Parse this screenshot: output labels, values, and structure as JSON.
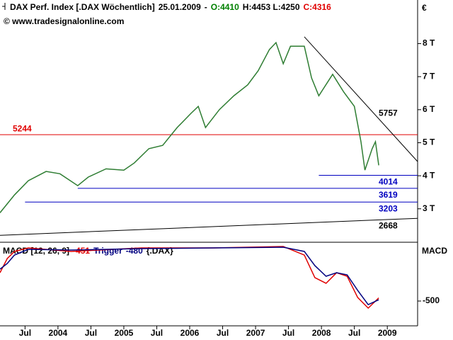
{
  "chart_data": [
    {
      "type": "line",
      "title": [
        {
          "text": "DAX Perf. Index [.DAX  Wöchentlich]",
          "color": "#000000"
        },
        {
          "text": "25.01.2009",
          "color": "#000000"
        },
        {
          "text": "-",
          "color": "#000000"
        },
        {
          "text": "O:4410",
          "color": "#008000"
        },
        {
          "text": "H:4453 L:4250",
          "color": "#000000"
        },
        {
          "text": "C:4316",
          "color": "#e00000"
        }
      ],
      "subtitle": "© www.tradesignalonline.com",
      "currency": "€",
      "xlim": [
        2003.12,
        2009.46
      ],
      "ylim": [
        2030,
        9320
      ],
      "yticks": [
        {
          "value": 3000,
          "label": "3 T"
        },
        {
          "value": 4000,
          "label": "4 T"
        },
        {
          "value": 5000,
          "label": "5 T"
        },
        {
          "value": 6000,
          "label": "6 T"
        },
        {
          "value": 7000,
          "label": "7 T"
        },
        {
          "value": 8000,
          "label": "8 T"
        }
      ],
      "series": [
        {
          "name": "DAX",
          "color": "#2e7d32",
          "x": [
            2003.12,
            2003.34,
            2003.55,
            2003.82,
            2004.03,
            2004.3,
            2004.46,
            2004.73,
            2005.0,
            2005.16,
            2005.38,
            2005.59,
            2005.81,
            2006.02,
            2006.13,
            2006.24,
            2006.45,
            2006.67,
            2006.88,
            2007.04,
            2007.21,
            2007.31,
            2007.42,
            2007.53,
            2007.74,
            2007.85,
            2007.96,
            2008.17,
            2008.34,
            2008.5,
            2008.6,
            2008.66,
            2008.77,
            2008.82,
            2008.87
          ],
          "values": [
            2880,
            3420,
            3850,
            4130,
            4060,
            3700,
            3960,
            4210,
            4170,
            4390,
            4820,
            4920,
            5460,
            5890,
            6100,
            5460,
            6000,
            6420,
            6750,
            7180,
            7820,
            8030,
            7390,
            7920,
            7920,
            6960,
            6420,
            7070,
            6530,
            6100,
            5030,
            4170,
            4820,
            5030,
            4316
          ]
        }
      ],
      "hlines": [
        {
          "value": 5244,
          "label": "5244",
          "color": "#e00000"
        },
        {
          "value": 4014,
          "label": "4014",
          "color": "#0000c0",
          "x0": 2007.96
        },
        {
          "value": 3619,
          "label": "3619",
          "color": "#0000c0",
          "x0": 2004.3
        },
        {
          "value": 3203,
          "label": "3203",
          "color": "#0000c0",
          "x0": 2003.5
        }
      ],
      "trendlines": [
        {
          "x": [
            2007.74,
            2009.46
          ],
          "values": [
            8206,
            4429
          ],
          "label": "5757",
          "color": "#000000"
        },
        {
          "x": [
            2003.12,
            2009.46
          ],
          "values": [
            2197,
            2712
          ],
          "label": "2668",
          "color": "#000000"
        }
      ]
    },
    {
      "type": "line",
      "title": [
        {
          "text": "MACD [12, 26, 9]",
          "color": "#000000"
        },
        {
          "text": "-451",
          "color": "#e00000"
        },
        {
          "text": "Trigger",
          "color": "#000080"
        },
        {
          "text": "-480",
          "color": "#000080"
        },
        {
          "text": "{.DAX}",
          "color": "#000000"
        }
      ],
      "axis_title": "MACD",
      "xlim": [
        2003.12,
        2009.46
      ],
      "ylim": [
        -889,
        389
      ],
      "yticks": [
        {
          "value": -500,
          "label": "-500"
        }
      ],
      "xticks": [
        {
          "value": 2003.5,
          "label": "Jul"
        },
        2004,
        {
          "value": 2004.5,
          "label": "Jul"
        },
        2005,
        {
          "value": 2005.5,
          "label": "Jul"
        },
        2006,
        {
          "value": 2006.5,
          "label": "Jul"
        },
        2007,
        {
          "value": 2007.5,
          "label": "Jul"
        },
        2008,
        {
          "value": 2008.5,
          "label": "Jul"
        },
        2009
      ],
      "series": [
        {
          "name": "MACD",
          "color": "#e00000",
          "x": [
            2003.12,
            2003.23,
            2003.34,
            2003.55,
            2004.2,
            2005.27,
            2006.35,
            2007.42,
            2007.74,
            2007.9,
            2008.07,
            2008.23,
            2008.39,
            2008.55,
            2008.71,
            2008.87
          ],
          "values": [
            -56,
            167,
            278,
            333,
            278,
            333,
            333,
            356,
            222,
            -133,
            -222,
            -56,
            -111,
            -444,
            -611,
            -451
          ]
        },
        {
          "name": "Trigger",
          "color": "#000080",
          "x": [
            2003.12,
            2003.23,
            2003.34,
            2003.55,
            2004.2,
            2005.27,
            2006.35,
            2007.42,
            2007.74,
            2007.9,
            2008.07,
            2008.23,
            2008.39,
            2008.55,
            2008.71,
            2008.87
          ],
          "values": [
            0,
            89,
            222,
            311,
            300,
            322,
            333,
            344,
            278,
            56,
            -111,
            -56,
            -89,
            -333,
            -556,
            -480
          ]
        }
      ]
    }
  ]
}
